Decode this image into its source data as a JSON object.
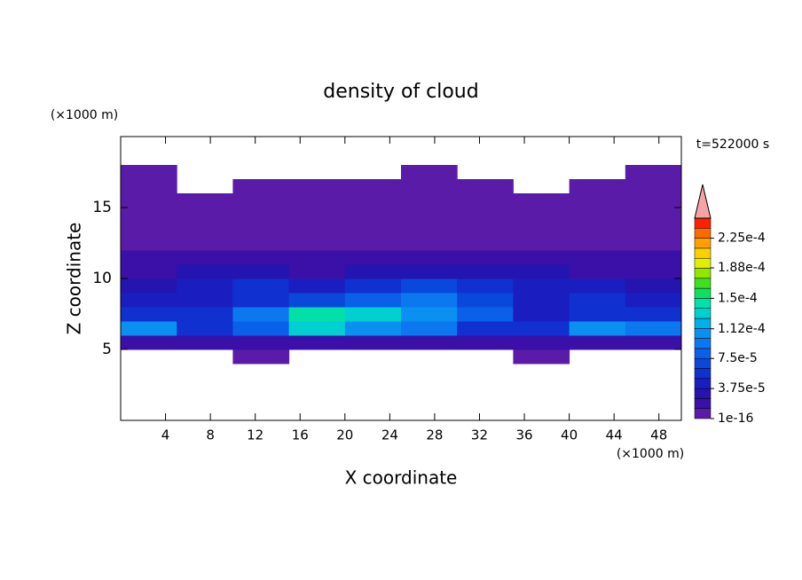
{
  "chart_data": {
    "type": "heatmap",
    "title": "density of cloud",
    "x_label": "X coordinate",
    "y_label": "Z coordinate",
    "x_unit": "(×1000 m)",
    "y_unit": "(×1000 m)",
    "annotation": "t=522000 s",
    "xlim": [
      0,
      50
    ],
    "ylim": [
      0,
      20
    ],
    "xticks": [
      4,
      8,
      12,
      16,
      20,
      24,
      28,
      32,
      36,
      40,
      44,
      48
    ],
    "yticks": [
      5,
      10,
      15
    ],
    "xedges": [
      0,
      5,
      10,
      15,
      20,
      25,
      30,
      35,
      40,
      45,
      50
    ],
    "zedges": [
      4,
      5,
      6,
      7,
      8,
      9,
      10,
      11,
      12,
      13,
      14,
      15,
      16,
      17,
      18
    ],
    "values": [
      [
        null,
        null,
        5e-06,
        null,
        null,
        null,
        null,
        5e-06,
        null,
        null
      ],
      [
        2e-05,
        2e-05,
        2e-05,
        2e-05,
        2e-05,
        2e-05,
        2e-05,
        2e-05,
        2e-05,
        2e-05
      ],
      [
        0.0001,
        6e-05,
        8e-05,
        0.00013,
        0.0001,
        9e-05,
        6e-05,
        5e-05,
        0.0001,
        9e-05
      ],
      [
        6e-05,
        5e-05,
        9e-05,
        0.00014,
        0.00013,
        0.00011,
        8e-05,
        4e-05,
        6e-05,
        5e-05
      ],
      [
        4e-05,
        4e-05,
        6e-05,
        7e-05,
        8e-05,
        9e-05,
        7e-05,
        4e-05,
        5e-05,
        4e-05
      ],
      [
        3e-05,
        4e-05,
        5e-05,
        4e-05,
        5e-05,
        7e-05,
        5e-05,
        4e-05,
        4e-05,
        3e-05
      ],
      [
        2e-05,
        3e-05,
        3e-05,
        2e-05,
        3e-05,
        3e-05,
        3e-05,
        3e-05,
        2e-05,
        2e-05
      ],
      [
        1.5e-05,
        1.5e-05,
        1.5e-05,
        1.5e-05,
        1.5e-05,
        1.5e-05,
        1.5e-05,
        1.5e-05,
        1.5e-05,
        1.5e-05
      ],
      [
        5e-06,
        5e-06,
        5e-06,
        5e-06,
        5e-06,
        5e-06,
        5e-06,
        5e-06,
        5e-06,
        5e-06
      ],
      [
        5e-06,
        5e-06,
        5e-06,
        5e-06,
        5e-06,
        5e-06,
        5e-06,
        5e-06,
        5e-06,
        5e-06
      ],
      [
        5e-06,
        5e-06,
        5e-06,
        5e-06,
        5e-06,
        5e-06,
        5e-06,
        5e-06,
        5e-06,
        5e-06
      ],
      [
        5e-06,
        5e-06,
        5e-06,
        5e-06,
        5e-06,
        5e-06,
        5e-06,
        5e-06,
        5e-06,
        5e-06
      ],
      [
        5e-06,
        null,
        5e-06,
        5e-06,
        5e-06,
        5e-06,
        5e-06,
        null,
        5e-06,
        5e-06
      ],
      [
        5e-06,
        null,
        null,
        null,
        null,
        5e-06,
        null,
        null,
        null,
        5e-06
      ]
    ],
    "clim": [
      0,
      0.00025
    ],
    "colors": [
      "#5a1ca8",
      "#3a10a8",
      "#2414b0",
      "#1a1ec0",
      "#1030d0",
      "#0a48dc",
      "#0a60e8",
      "#0c78f0",
      "#0a90f0",
      "#00b0e8",
      "#00d0d0",
      "#00e0a8",
      "#10e060",
      "#40e020",
      "#90e800",
      "#e0f000",
      "#ffd000",
      "#ffa000",
      "#ff6a00",
      "#ff2000"
    ],
    "over_color": "#f4a4a4",
    "cbticks": [
      1e-16,
      {
        "value": 3.75e-05,
        "label": "3.75e-5"
      },
      {
        "value": 7.5e-05,
        "label": "7.5e-5"
      },
      {
        "value": 0.000112,
        "label": "1.12e-4"
      },
      {
        "value": 0.00015,
        "label": "1.5e-4"
      },
      {
        "value": 0.000188,
        "label": "1.88e-4"
      },
      {
        "value": 0.000225,
        "label": "2.25e-4"
      }
    ]
  }
}
